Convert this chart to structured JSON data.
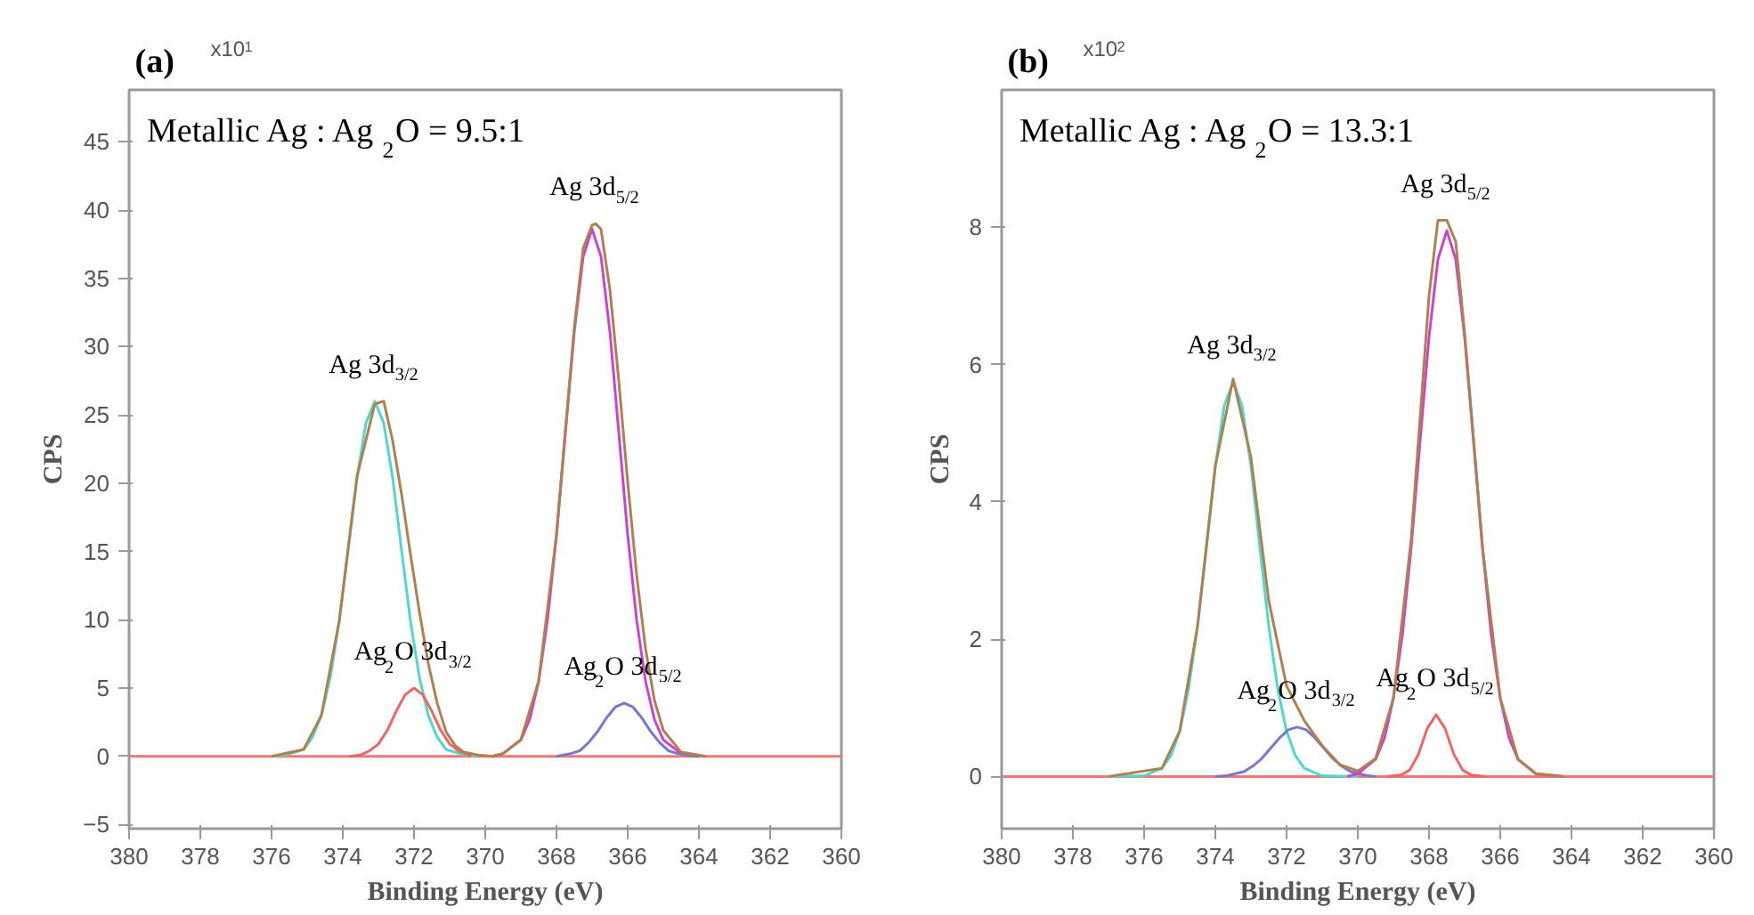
{
  "chart_data": [
    {
      "type": "line",
      "title": "Metallic Ag : Ag$_{2}$O = 9.5:1",
      "xlabel": "Binding Energy (eV)",
      "ylabel": "CPS",
      "annotations": [
        "(a)",
        "x10$^{1}$",
        {
          "text": "Ag 3d$_{3/2}$",
          "x": 373.1,
          "y": 26
        },
        {
          "text": "Ag 3d$_{5/2}$",
          "x": 366.9,
          "y": 39
        },
        {
          "text": "Ag$_{2}$O 3d$_{3/2}$",
          "x": 372.0,
          "y": 5
        },
        {
          "text": "Ag$_{2}$O 3d$_{5/2}$",
          "x": 366.1,
          "y": 3.9
        }
      ],
      "xlim": [
        380,
        360
      ],
      "xticks": [
        380,
        378,
        376,
        374,
        372,
        370,
        368,
        366,
        364,
        362,
        360
      ],
      "ylim": [
        -5.3,
        48.8
      ],
      "yticks": [
        -5,
        0,
        5,
        10,
        15,
        20,
        25,
        30,
        35,
        40,
        45
      ],
      "grid": false,
      "series": [
        {
          "color": "#ee7777",
          "x": [
            380,
            360
          ],
          "values": [
            0,
            0
          ]
        },
        {
          "color": "#4fd8cc",
          "x": [
            376,
            375.6,
            375.1,
            374.85,
            374.6,
            374.35,
            374.1,
            373.85,
            373.6,
            373.35,
            373.1,
            372.85,
            372.6,
            372.35,
            372.1,
            371.85,
            371.6,
            371.35,
            371.1,
            370.6,
            370.2
          ],
          "values": [
            0,
            0.1,
            0.5,
            1.4,
            3.0,
            5.8,
            9.9,
            15.1,
            20.4,
            24.4,
            26,
            24.4,
            20.4,
            15.1,
            9.9,
            5.8,
            3.0,
            1.4,
            0.5,
            0.1,
            0
          ]
        },
        {
          "color": "#ee6666",
          "x": [
            373.8,
            373.5,
            373.25,
            373,
            372.75,
            372.5,
            372.25,
            372,
            371.75,
            371.5,
            371.25,
            371,
            370.75,
            370.4
          ],
          "values": [
            0,
            0.1,
            0.4,
            0.9,
            1.9,
            3.3,
            4.5,
            5,
            4.5,
            3.3,
            1.9,
            0.9,
            0.4,
            0
          ]
        },
        {
          "color": "#cc44cc",
          "x": [
            369.8,
            369.5,
            369,
            368.75,
            368.5,
            368.25,
            368,
            367.75,
            367.5,
            367.25,
            367,
            366.75,
            366.5,
            366.25,
            366,
            365.75,
            365.5,
            365.25,
            365,
            364.5,
            364
          ],
          "values": [
            0,
            0.2,
            1.2,
            2.7,
            5.5,
            10.0,
            16.2,
            23.7,
            31.1,
            36.6,
            38.6,
            36.6,
            31.1,
            23.7,
            16.2,
            10.0,
            5.5,
            2.7,
            1.2,
            0.2,
            0
          ]
        },
        {
          "color": "#7777cc",
          "x": [
            368,
            367.6,
            367.35,
            367.1,
            366.85,
            366.6,
            366.35,
            366.1,
            365.85,
            365.6,
            365.35,
            365.1,
            364.85,
            364.6,
            364
          ],
          "values": [
            0,
            0.2,
            0.4,
            1.0,
            1.8,
            2.8,
            3.6,
            3.9,
            3.6,
            2.8,
            1.8,
            1.0,
            0.4,
            0.2,
            0
          ]
        },
        {
          "color": "#b08050",
          "x": [
            376,
            375.1,
            374.6,
            374.1,
            373.6,
            373.1,
            372.85,
            372.6,
            372.35,
            372.1,
            371.85,
            371.6,
            371.35,
            371.1,
            370.85,
            370.6,
            370.2,
            369.8,
            369.5,
            369,
            368.5,
            368,
            367.5,
            367.25,
            367,
            366.9,
            366.75,
            366.5,
            366.25,
            366,
            365.75,
            365.5,
            365.25,
            365,
            364.5,
            363.8
          ],
          "values": [
            0,
            0.5,
            3.0,
            9.9,
            20.5,
            25.8,
            26.0,
            23.1,
            19.2,
            14.8,
            10.6,
            6.8,
            3.9,
            1.8,
            0.8,
            0.3,
            0.1,
            0,
            0.2,
            1.2,
            5.5,
            16.2,
            31.4,
            37.2,
            38.9,
            39.0,
            38.6,
            34.2,
            27.5,
            20.1,
            13.3,
            7.9,
            4.1,
            1.9,
            0.3,
            0
          ]
        }
      ]
    },
    {
      "type": "line",
      "title": "Metallic Ag : Ag$_{2}$O = 13.3:1",
      "xlabel": "Binding Energy (eV)",
      "ylabel": "CPS",
      "annotations": [
        "(b)",
        "x10$^{2}$",
        {
          "text": "Ag 3d$_{3/2}$",
          "x": 373.5,
          "y": 5.75
        },
        {
          "text": "Ag 3d$_{5/2}$",
          "x": 367.5,
          "y": 8.1
        },
        {
          "text": "Ag$_{2}$O 3d$_{3/2}$",
          "x": 371.7,
          "y": 0.72
        },
        {
          "text": "Ag$_{2}$O 3d$_{5/2}$",
          "x": 367.8,
          "y": 0.9
        }
      ],
      "xlim": [
        380,
        360
      ],
      "xticks": [
        380,
        378,
        376,
        374,
        372,
        370,
        368,
        366,
        364,
        362,
        360
      ],
      "ylim": [
        -0.76,
        10.0
      ],
      "yticks": [
        0,
        2,
        4,
        6,
        8
      ],
      "grid": false,
      "series": [
        {
          "color": "#ee7777",
          "x": [
            380,
            360
          ],
          "values": [
            0,
            0
          ]
        },
        {
          "color": "#4fd8cc",
          "x": [
            377,
            376,
            375.5,
            375.25,
            375,
            374.75,
            374.5,
            374.25,
            374,
            373.75,
            373.5,
            373.25,
            373,
            372.75,
            372.5,
            372.25,
            372,
            371.75,
            371.5,
            371,
            370
          ],
          "values": [
            0,
            0.01,
            0.12,
            0.3,
            0.66,
            1.28,
            2.19,
            3.34,
            4.52,
            5.4,
            5.75,
            5.4,
            4.52,
            3.34,
            2.19,
            1.28,
            0.66,
            0.3,
            0.12,
            0.01,
            0
          ]
        },
        {
          "color": "#7777cc",
          "x": [
            374,
            373.7,
            373.2,
            372.95,
            372.7,
            372.45,
            372.2,
            371.95,
            371.7,
            371.45,
            371.2,
            370.95,
            370.7,
            370.45,
            370.2,
            369.7,
            369.5
          ],
          "values": [
            0,
            0.01,
            0.07,
            0.15,
            0.26,
            0.41,
            0.56,
            0.68,
            0.72,
            0.68,
            0.56,
            0.41,
            0.26,
            0.15,
            0.07,
            0.01,
            0
          ]
        },
        {
          "color": "#cc44cc",
          "x": [
            370.3,
            370,
            369.5,
            369.25,
            369,
            368.75,
            368.5,
            368.25,
            368,
            367.75,
            367.5,
            367.25,
            367,
            366.75,
            366.5,
            366.25,
            366,
            365.75,
            365.5,
            365,
            364.2
          ],
          "values": [
            0,
            0.04,
            0.25,
            0.56,
            1.14,
            2.05,
            3.34,
            4.89,
            6.4,
            7.53,
            7.95,
            7.53,
            6.4,
            4.89,
            3.34,
            2.05,
            1.14,
            0.56,
            0.25,
            0.04,
            0
          ]
        },
        {
          "color": "#ee6666",
          "x": [
            369.2,
            368.8,
            368.55,
            368.3,
            368.05,
            367.8,
            367.55,
            367.3,
            367.05,
            366.8,
            366.4
          ],
          "values": [
            0,
            0.02,
            0.09,
            0.32,
            0.7,
            0.9,
            0.7,
            0.32,
            0.09,
            0.02,
            0
          ]
        },
        {
          "color": "#b08050",
          "x": [
            377,
            375.5,
            375,
            374.5,
            374,
            373.5,
            373,
            372.5,
            372,
            371.5,
            371,
            370.5,
            370,
            369.5,
            369,
            368.5,
            368,
            367.75,
            367.5,
            367.25,
            367,
            366.5,
            366,
            365.5,
            365,
            364.2
          ],
          "values": [
            0,
            0.12,
            0.66,
            2.19,
            4.52,
            5.79,
            4.65,
            2.56,
            1.32,
            0.81,
            0.45,
            0.17,
            0.08,
            0.26,
            1.14,
            3.46,
            7.0,
            8.1,
            8.1,
            7.79,
            6.46,
            3.34,
            1.14,
            0.25,
            0.04,
            0
          ]
        }
      ]
    }
  ]
}
